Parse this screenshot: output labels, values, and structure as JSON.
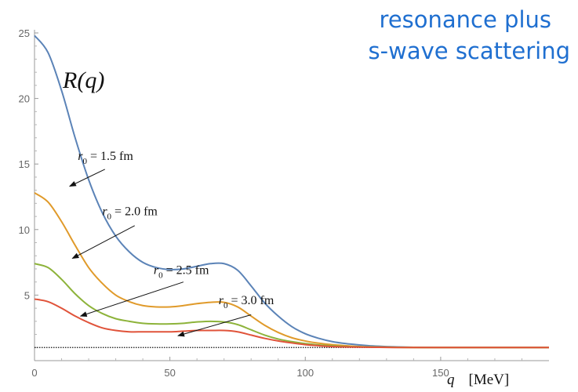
{
  "chart_data": {
    "type": "line",
    "title": [
      "resonance plus",
      "s-wave scattering"
    ],
    "ylabel": "R(q)",
    "xlabel": {
      "var": "q",
      "unit": "[MeV]"
    },
    "xlim": [
      0,
      190
    ],
    "ylim": [
      0,
      25
    ],
    "xticks": [
      0,
      50,
      100,
      150
    ],
    "yticks": [
      5,
      10,
      15,
      20,
      25
    ],
    "grid": false,
    "reference_line": {
      "y": 1.0,
      "style": "dotted",
      "color": "#111111"
    },
    "series": [
      {
        "name": "r0 = 1.5 fm",
        "label": {
          "sym": "r",
          "sub": "0",
          "rest": " = 1.5 fm"
        },
        "color": "#5b83b7",
        "x": [
          0,
          5,
          10,
          15,
          20,
          25,
          30,
          35,
          40,
          45,
          50,
          55,
          60,
          65,
          70,
          75,
          80,
          85,
          90,
          95,
          100,
          105,
          110,
          115,
          120,
          125,
          130,
          135,
          140,
          145,
          150,
          160,
          170,
          180,
          190
        ],
        "y": [
          24.8,
          23.5,
          20.6,
          17.0,
          13.8,
          11.3,
          9.5,
          8.3,
          7.5,
          7.1,
          6.95,
          7.0,
          7.2,
          7.4,
          7.4,
          6.9,
          5.7,
          4.4,
          3.4,
          2.6,
          2.05,
          1.7,
          1.45,
          1.3,
          1.2,
          1.12,
          1.07,
          1.04,
          1.02,
          1.01,
          1.0,
          1.0,
          1.0,
          1.0,
          1.0
        ]
      },
      {
        "name": "r0 = 2.0 fm",
        "label": {
          "sym": "r",
          "sub": "0",
          "rest": " = 2.0 fm"
        },
        "color": "#e09a2a",
        "x": [
          0,
          5,
          10,
          15,
          20,
          25,
          30,
          35,
          40,
          45,
          50,
          55,
          60,
          65,
          70,
          75,
          80,
          85,
          90,
          95,
          100,
          105,
          110,
          115,
          120,
          125,
          130,
          135,
          140,
          145,
          150,
          160,
          170,
          180,
          190
        ],
        "y": [
          12.8,
          12.1,
          10.6,
          8.8,
          7.1,
          5.9,
          5.0,
          4.5,
          4.2,
          4.1,
          4.1,
          4.2,
          4.35,
          4.45,
          4.45,
          4.1,
          3.4,
          2.7,
          2.15,
          1.75,
          1.5,
          1.33,
          1.22,
          1.14,
          1.08,
          1.05,
          1.03,
          1.02,
          1.01,
          1.0,
          1.0,
          1.0,
          1.0,
          1.0,
          1.0
        ]
      },
      {
        "name": "r0 = 2.5 fm",
        "label": {
          "sym": "r",
          "sub": "0",
          "rest": " = 2.5 fm"
        },
        "color": "#8db33a",
        "x": [
          0,
          5,
          10,
          15,
          20,
          25,
          30,
          35,
          40,
          45,
          50,
          55,
          60,
          65,
          70,
          75,
          80,
          85,
          90,
          95,
          100,
          105,
          110,
          115,
          120,
          125,
          130,
          135,
          140,
          145,
          150,
          160,
          170,
          180,
          190
        ],
        "y": [
          7.4,
          7.1,
          6.2,
          5.1,
          4.2,
          3.6,
          3.2,
          3.0,
          2.85,
          2.8,
          2.8,
          2.85,
          2.95,
          3.0,
          2.95,
          2.75,
          2.35,
          1.95,
          1.65,
          1.45,
          1.3,
          1.2,
          1.13,
          1.08,
          1.05,
          1.03,
          1.02,
          1.01,
          1.0,
          1.0,
          1.0,
          1.0,
          1.0,
          1.0,
          1.0
        ]
      },
      {
        "name": "r0 = 3.0 fm",
        "label": {
          "sym": "r",
          "sub": "0",
          "rest": " = 3.0 fm"
        },
        "color": "#e0533a",
        "x": [
          0,
          5,
          10,
          15,
          20,
          25,
          30,
          35,
          40,
          45,
          50,
          55,
          60,
          65,
          70,
          75,
          80,
          85,
          90,
          95,
          100,
          105,
          110,
          115,
          120,
          125,
          130,
          135,
          140,
          145,
          150,
          160,
          170,
          180,
          190
        ],
        "y": [
          4.7,
          4.5,
          4.0,
          3.4,
          2.9,
          2.5,
          2.3,
          2.2,
          2.2,
          2.2,
          2.2,
          2.25,
          2.3,
          2.3,
          2.3,
          2.2,
          1.95,
          1.7,
          1.5,
          1.35,
          1.22,
          1.14,
          1.08,
          1.05,
          1.03,
          1.02,
          1.01,
          1.0,
          1.0,
          1.0,
          1.0,
          1.0,
          1.0,
          1.0,
          1.0
        ]
      }
    ],
    "annotations": [
      {
        "series": 0,
        "text_at": [
          16,
          15.3
        ],
        "arrow_from": [
          26,
          14.6
        ],
        "arrow_to": [
          13,
          13.3
        ]
      },
      {
        "series": 1,
        "text_at": [
          25,
          11.1
        ],
        "arrow_from": [
          37,
          10.3
        ],
        "arrow_to": [
          14,
          7.8
        ]
      },
      {
        "series": 2,
        "text_at": [
          44,
          6.6
        ],
        "arrow_from": [
          55,
          6.0
        ],
        "arrow_to": [
          17,
          3.4
        ]
      },
      {
        "series": 3,
        "text_at": [
          68,
          4.3
        ],
        "arrow_from": [
          80,
          3.5
        ],
        "arrow_to": [
          53,
          1.9
        ]
      }
    ]
  }
}
